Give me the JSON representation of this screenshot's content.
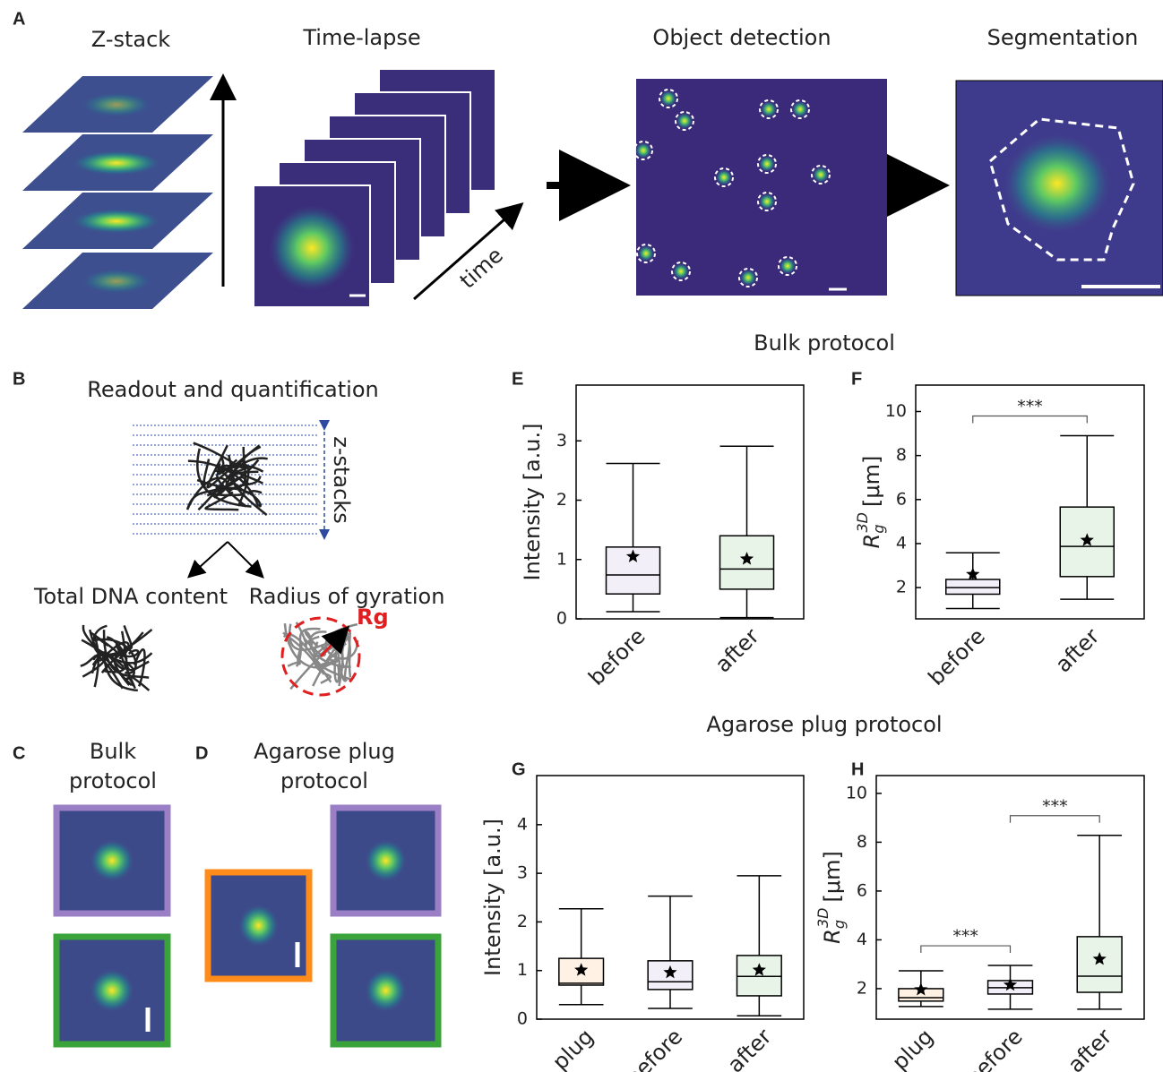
{
  "panel_a": {
    "label": "A",
    "titles": [
      "Z-stack",
      "Time-lapse",
      "Object detection",
      "Segmentation"
    ],
    "arrow_label": "time"
  },
  "panel_b": {
    "label": "B",
    "title": "Readout and quantification",
    "z_label": "z-stacks",
    "left": "Total DNA content",
    "right": "Radius of gyration",
    "rg": "Rg"
  },
  "panel_c": {
    "label": "C",
    "title_lines": [
      "Bulk",
      "protocol"
    ]
  },
  "panel_d": {
    "label": "D",
    "title_lines": [
      "Agarose plug",
      "protocol"
    ]
  },
  "sections": [
    "Bulk protocol",
    "Agarose plug protocol"
  ],
  "chart_data": [
    {
      "type": "box",
      "panel": "E",
      "ylabel": "Intensity [a.u.]",
      "categories": [
        "before",
        "after"
      ],
      "colors": [
        "#9b7fc6",
        "#3aa33a"
      ],
      "whisker_low": [
        0.12,
        0.02
      ],
      "q1": [
        0.42,
        0.5
      ],
      "median": [
        0.74,
        0.84
      ],
      "q3": [
        1.21,
        1.4
      ],
      "whisker_high": [
        2.62,
        2.91
      ],
      "mean": [
        1.05,
        1.01
      ],
      "ylim": [
        0,
        3.94
      ],
      "yticks": [
        0,
        1,
        2,
        3
      ],
      "annotations": []
    },
    {
      "type": "box",
      "panel": "F",
      "ylabel": {
        "main": "R",
        "sub": "g",
        "sup": "3D",
        "unit": "[μm]"
      },
      "categories": [
        "before",
        "after"
      ],
      "colors": [
        "#9b7fc6",
        "#3aa33a"
      ],
      "whisker_low": [
        1.05,
        1.47
      ],
      "q1": [
        1.7,
        2.5
      ],
      "median": [
        2.0,
        3.87
      ],
      "q3": [
        2.37,
        5.66
      ],
      "whisker_high": [
        3.58,
        8.9
      ],
      "mean": [
        2.6,
        4.15
      ],
      "ylim": [
        0.58,
        11.2
      ],
      "yticks": [
        2,
        4,
        6,
        8,
        10
      ],
      "annotations": [
        {
          "text": "***",
          "between": [
            "before",
            "after"
          ]
        }
      ]
    },
    {
      "type": "box",
      "panel": "G",
      "ylabel": "Intensity [a.u.]",
      "categories": [
        "plug",
        "before",
        "after"
      ],
      "colors": [
        "#ff8c1a",
        "#9b7fc6",
        "#3aa33a"
      ],
      "whisker_low": [
        0.3,
        0.22,
        0.07
      ],
      "q1": [
        0.7,
        0.61,
        0.48
      ],
      "median": [
        0.74,
        0.77,
        0.88
      ],
      "q3": [
        1.25,
        1.2,
        1.31
      ],
      "whisker_high": [
        2.27,
        2.53,
        2.95
      ],
      "mean": [
        1.01,
        0.96,
        1.01
      ],
      "ylim": [
        0,
        5.01
      ],
      "yticks": [
        0,
        1,
        2,
        3,
        4
      ],
      "annotations": []
    },
    {
      "type": "box",
      "panel": "H",
      "ylabel": {
        "main": "R",
        "sub": "g",
        "sup": "3D",
        "unit": "[μm]"
      },
      "categories": [
        "plug",
        "before",
        "after"
      ],
      "colors": [
        "#ff8c1a",
        "#9b7fc6",
        "#3aa33a"
      ],
      "whisker_low": [
        1.27,
        1.16,
        1.16
      ],
      "q1": [
        1.49,
        1.78,
        1.85
      ],
      "median": [
        1.63,
        2.04,
        2.51
      ],
      "q3": [
        2.0,
        2.33,
        4.13
      ],
      "whisker_high": [
        2.73,
        2.95,
        8.28
      ],
      "mean": [
        1.96,
        2.15,
        3.21
      ],
      "ylim": [
        0.75,
        10.73
      ],
      "yticks": [
        2,
        4,
        6,
        8,
        10
      ],
      "annotations": [
        {
          "text": "***",
          "between": [
            "plug",
            "before"
          ]
        },
        {
          "text": "***",
          "between": [
            "before",
            "after"
          ]
        }
      ]
    }
  ]
}
